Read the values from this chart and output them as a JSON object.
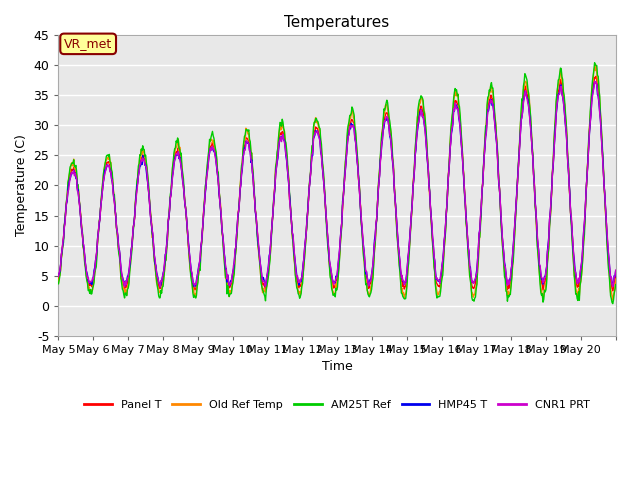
{
  "title": "Temperatures",
  "xlabel": "Time",
  "ylabel": "Temperature (C)",
  "ylim": [
    -5,
    45
  ],
  "yticks": [
    -5,
    0,
    5,
    10,
    15,
    20,
    25,
    30,
    35,
    40,
    45
  ],
  "x_tick_positions": [
    0,
    1,
    2,
    3,
    4,
    5,
    6,
    7,
    8,
    9,
    10,
    11,
    12,
    13,
    14,
    15,
    16
  ],
  "x_labels": [
    "May 5",
    "May 6",
    "May 7",
    "May 8",
    "May 9",
    "May 10",
    "May 11",
    "May 12",
    "May 13",
    "May 14",
    "May 15",
    "May 16",
    "May 17",
    "May 18",
    "May 19",
    "May 20",
    ""
  ],
  "background_color": "#e8e8e8",
  "legend_entries": [
    "Panel T",
    "Old Ref Temp",
    "AM25T Ref",
    "HMP45 T",
    "CNR1 PRT"
  ],
  "line_colors": [
    "#ff0000",
    "#ff8800",
    "#00cc00",
    "#0000ee",
    "#cc00cc"
  ],
  "annotation_text": "VR_met",
  "annotation_color": "#880000",
  "annotation_bg": "#ffff99",
  "days": 16,
  "pts_per_day": 48,
  "seed": 42
}
